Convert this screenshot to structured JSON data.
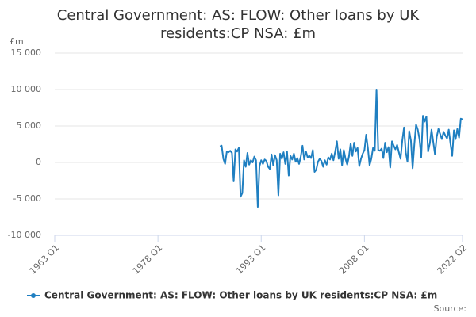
{
  "chart_data": {
    "type": "line",
    "title": "Central Government: AS: FLOW: Other loans by UK residents:CP NSA: £m",
    "y_label": "£m",
    "source": "Source:",
    "x": [
      "1987 Q1",
      "1987 Q2",
      "1987 Q3",
      "1987 Q4",
      "1988 Q1",
      "1988 Q2",
      "1988 Q3",
      "1988 Q4",
      "1989 Q1",
      "1989 Q2",
      "1989 Q3",
      "1989 Q4",
      "1990 Q1",
      "1990 Q2",
      "1990 Q3",
      "1990 Q4",
      "1991 Q1",
      "1991 Q2",
      "1991 Q3",
      "1991 Q4",
      "1992 Q1",
      "1992 Q2",
      "1992 Q3",
      "1992 Q4",
      "1993 Q1",
      "1993 Q2",
      "1993 Q3",
      "1993 Q4",
      "1994 Q1",
      "1994 Q2",
      "1994 Q3",
      "1994 Q4",
      "1995 Q1",
      "1995 Q2",
      "1995 Q3",
      "1995 Q4",
      "1996 Q1",
      "1996 Q2",
      "1996 Q3",
      "1996 Q4",
      "1997 Q1",
      "1997 Q2",
      "1997 Q3",
      "1997 Q4",
      "1998 Q1",
      "1998 Q2",
      "1998 Q3",
      "1998 Q4",
      "1999 Q1",
      "1999 Q2",
      "1999 Q3",
      "1999 Q4",
      "2000 Q1",
      "2000 Q2",
      "2000 Q3",
      "2000 Q4",
      "2001 Q1",
      "2001 Q2",
      "2001 Q3",
      "2001 Q4",
      "2002 Q1",
      "2002 Q2",
      "2002 Q3",
      "2002 Q4",
      "2003 Q1",
      "2003 Q2",
      "2003 Q3",
      "2003 Q4",
      "2004 Q1",
      "2004 Q2",
      "2004 Q3",
      "2004 Q4",
      "2005 Q1",
      "2005 Q2",
      "2005 Q3",
      "2005 Q4",
      "2006 Q1",
      "2006 Q2",
      "2006 Q3",
      "2006 Q4",
      "2007 Q1",
      "2007 Q2",
      "2007 Q3",
      "2007 Q4",
      "2008 Q1",
      "2008 Q2",
      "2008 Q3",
      "2008 Q4",
      "2009 Q1",
      "2009 Q2",
      "2009 Q3",
      "2009 Q4",
      "2010 Q1",
      "2010 Q2",
      "2010 Q3",
      "2010 Q4",
      "2011 Q1",
      "2011 Q2",
      "2011 Q3",
      "2011 Q4",
      "2012 Q1",
      "2012 Q2",
      "2012 Q3",
      "2012 Q4",
      "2013 Q1",
      "2013 Q2",
      "2013 Q3",
      "2013 Q4",
      "2014 Q1",
      "2014 Q2",
      "2014 Q3",
      "2014 Q4",
      "2015 Q1",
      "2015 Q2",
      "2015 Q3",
      "2015 Q4",
      "2016 Q1",
      "2016 Q2",
      "2016 Q3",
      "2016 Q4",
      "2017 Q1",
      "2017 Q2",
      "2017 Q3",
      "2017 Q4",
      "2018 Q1",
      "2018 Q2",
      "2018 Q3",
      "2018 Q4",
      "2019 Q1",
      "2019 Q2",
      "2019 Q3",
      "2019 Q4",
      "2020 Q1",
      "2020 Q2",
      "2020 Q3",
      "2020 Q4",
      "2021 Q1",
      "2021 Q2",
      "2021 Q3",
      "2021 Q4",
      "2022 Q1",
      "2022 Q2"
    ],
    "series": [
      {
        "name": "Central Government: AS: FLOW: Other loans by UK residents:CP NSA: £m",
        "color": "#1f7fc1",
        "values": [
          2200,
          2300,
          500,
          -200,
          1500,
          1400,
          1600,
          1300,
          -2600,
          1800,
          1500,
          2000,
          -4700,
          -4200,
          300,
          -600,
          1300,
          -300,
          300,
          0,
          800,
          300,
          -6100,
          -500,
          300,
          -200,
          400,
          200,
          -600,
          -900,
          1100,
          -400,
          1000,
          300,
          -4500,
          1200,
          500,
          1400,
          -200,
          1500,
          -1800,
          900,
          400,
          1200,
          100,
          600,
          -200,
          800,
          2300,
          400,
          1500,
          700,
          900,
          600,
          1700,
          -1300,
          -1000,
          100,
          500,
          200,
          -600,
          300,
          -300,
          700,
          400,
          1200,
          300,
          1500,
          2900,
          500,
          1800,
          -400,
          1700,
          500,
          -300,
          800,
          2600,
          900,
          2700,
          1500,
          2000,
          -500,
          500,
          1200,
          1700,
          3800,
          2000,
          -400,
          500,
          2000,
          1600,
          10000,
          1700,
          1600,
          1900,
          600,
          2700,
          1400,
          2100,
          -700,
          2900,
          2300,
          1800,
          2400,
          1400,
          500,
          3000,
          4800,
          1400,
          100,
          4300,
          3000,
          -800,
          2500,
          5200,
          4500,
          3200,
          700,
          6400,
          5600,
          6300,
          1500,
          2600,
          4500,
          2800,
          1100,
          3500,
          4600,
          3900,
          3200,
          4200,
          3700,
          3300,
          4500,
          2600,
          900,
          4400,
          3200,
          4600,
          3400,
          6000,
          5900
        ]
      }
    ],
    "xlim": [
      "1963 Q1",
      "2022 Q2"
    ],
    "xticks": [
      "1963 Q1",
      "1978 Q1",
      "1993 Q1",
      "2008 Q1",
      "2022 Q2"
    ],
    "ylim": [
      -10000,
      15000
    ],
    "yticks": [
      {
        "value": -10000,
        "label": "-10 000"
      },
      {
        "value": -5000,
        "label": "-5 000"
      },
      0,
      {
        "value": 5000,
        "label": "5 000"
      },
      {
        "value": 10000,
        "label": "10 000"
      },
      {
        "value": 15000,
        "label": "15 000"
      }
    ],
    "grid": true
  }
}
